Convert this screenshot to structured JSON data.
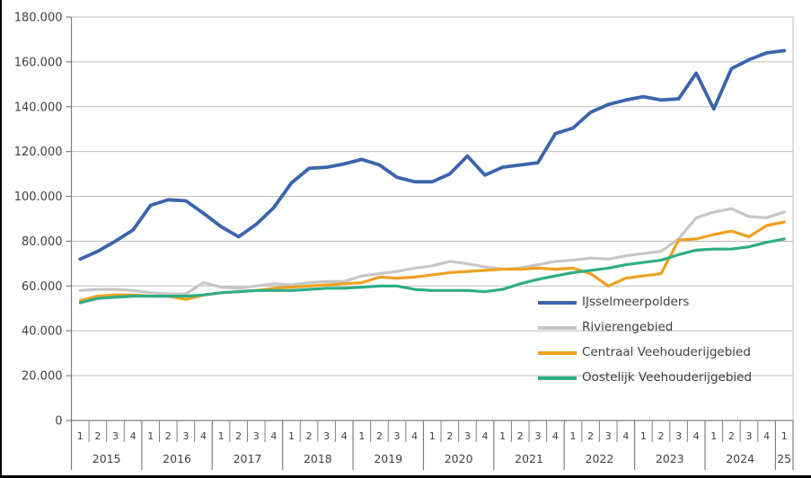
{
  "chart_data": {
    "type": "line",
    "title": "",
    "grid": true,
    "legend_position": "inside-right",
    "y_axis": {
      "min": 0,
      "max": 180000,
      "step": 20000,
      "tick_labels": [
        "0",
        "20.000",
        "40.000",
        "60.000",
        "80.000",
        "100.000",
        "120.000",
        "140.000",
        "160.000",
        "180.000"
      ]
    },
    "x_axis": {
      "years": [
        {
          "label": "2015",
          "quarters": [
            "1",
            "2",
            "3",
            "4"
          ]
        },
        {
          "label": "2016",
          "quarters": [
            "1",
            "2",
            "3",
            "4"
          ]
        },
        {
          "label": "2017",
          "quarters": [
            "1",
            "2",
            "3",
            "4"
          ]
        },
        {
          "label": "2018",
          "quarters": [
            "1",
            "2",
            "3",
            "4"
          ]
        },
        {
          "label": "2019",
          "quarters": [
            "1",
            "2",
            "3",
            "4"
          ]
        },
        {
          "label": "2020",
          "quarters": [
            "1",
            "2",
            "3",
            "4"
          ]
        },
        {
          "label": "2021",
          "quarters": [
            "1",
            "2",
            "3",
            "4"
          ]
        },
        {
          "label": "2022",
          "quarters": [
            "1",
            "2",
            "3",
            "4"
          ]
        },
        {
          "label": "2023",
          "quarters": [
            "1",
            "2",
            "3",
            "4"
          ]
        },
        {
          "label": "2024",
          "quarters": [
            "1",
            "2",
            "3",
            "4"
          ]
        },
        {
          "label": "25",
          "quarters": [
            "1"
          ]
        }
      ]
    },
    "series": [
      {
        "name": "IJsselmeerpolders",
        "color": "#3B64AD",
        "values": [
          72000,
          75500,
          80000,
          85000,
          96000,
          98500,
          98000,
          92500,
          86500,
          82000,
          87500,
          95000,
          106000,
          112500,
          113000,
          114500,
          116500,
          114000,
          108500,
          106500,
          106500,
          110000,
          118000,
          109500,
          113000,
          114000,
          115000,
          128000,
          130500,
          137500,
          141000,
          143000,
          144500,
          143000,
          143500,
          155000,
          139000,
          157000,
          161000,
          164000,
          165000
        ]
      },
      {
        "name": "Rivierengebied",
        "color": "#C6C6C6",
        "values": [
          58000,
          58500,
          58500,
          58000,
          57000,
          56500,
          56500,
          61500,
          59500,
          59000,
          60000,
          61000,
          60500,
          61500,
          62000,
          62000,
          64500,
          65500,
          66500,
          68000,
          69000,
          71000,
          70000,
          68500,
          67500,
          68000,
          69500,
          71000,
          71500,
          72500,
          72000,
          73500,
          74500,
          75500,
          81000,
          90500,
          93000,
          94500,
          91000,
          90500,
          93000
        ]
      },
      {
        "name": "Centraal Veehouderijgebied",
        "color": "#EDA120",
        "values": [
          53500,
          55500,
          56000,
          56000,
          55500,
          55500,
          54000,
          56000,
          57000,
          57500,
          58000,
          59000,
          59500,
          60000,
          60500,
          61000,
          61500,
          64000,
          63500,
          64000,
          65000,
          66000,
          66500,
          67000,
          67500,
          67500,
          68000,
          67500,
          68000,
          65500,
          60000,
          63500,
          64500,
          65500,
          80500,
          81000,
          83000,
          84500,
          82000,
          87000,
          88500
        ]
      },
      {
        "name": "Oostelijk Veehouderijgebied",
        "color": "#2EAD86",
        "values": [
          52500,
          54500,
          55000,
          55500,
          55500,
          55500,
          55500,
          56000,
          57000,
          57500,
          58000,
          58000,
          58000,
          58500,
          59000,
          59000,
          59500,
          60000,
          60000,
          58500,
          58000,
          58000,
          58000,
          57500,
          58500,
          61000,
          63000,
          64500,
          66000,
          67000,
          68000,
          69500,
          70500,
          71500,
          74000,
          76000,
          76500,
          76500,
          77500,
          79500,
          81000
        ]
      }
    ],
    "style": {
      "gridline_color": "#BDBDBD",
      "axis_color": "#7F7F7F",
      "text_color": "#3F3F3F",
      "plot_border_right": true
    }
  }
}
